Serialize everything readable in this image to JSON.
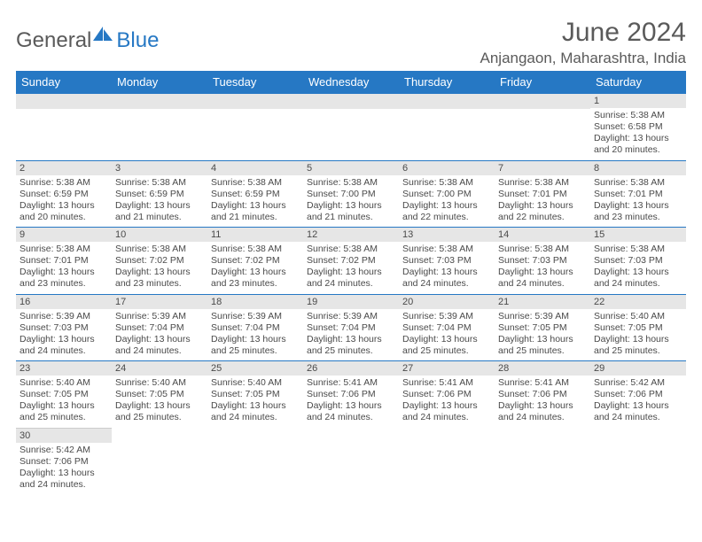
{
  "brand": {
    "part1": "General",
    "part2": "Blue",
    "color_dark": "#5a5a5a",
    "color_blue": "#2678c4"
  },
  "title": "June 2024",
  "subtitle": "Anjangaon, Maharashtra, India",
  "colors": {
    "header_bg": "#2678c4",
    "header_text": "#ffffff",
    "daynum_bg": "#e6e6e6",
    "border": "#2678c4",
    "text": "#4a4a4a"
  },
  "day_headers": [
    "Sunday",
    "Monday",
    "Tuesday",
    "Wednesday",
    "Thursday",
    "Friday",
    "Saturday"
  ],
  "weeks": [
    [
      null,
      null,
      null,
      null,
      null,
      null,
      {
        "n": "1",
        "sr": "Sunrise: 5:38 AM",
        "ss": "Sunset: 6:58 PM",
        "dl": "Daylight: 13 hours and 20 minutes."
      }
    ],
    [
      {
        "n": "2",
        "sr": "Sunrise: 5:38 AM",
        "ss": "Sunset: 6:59 PM",
        "dl": "Daylight: 13 hours and 20 minutes."
      },
      {
        "n": "3",
        "sr": "Sunrise: 5:38 AM",
        "ss": "Sunset: 6:59 PM",
        "dl": "Daylight: 13 hours and 21 minutes."
      },
      {
        "n": "4",
        "sr": "Sunrise: 5:38 AM",
        "ss": "Sunset: 6:59 PM",
        "dl": "Daylight: 13 hours and 21 minutes."
      },
      {
        "n": "5",
        "sr": "Sunrise: 5:38 AM",
        "ss": "Sunset: 7:00 PM",
        "dl": "Daylight: 13 hours and 21 minutes."
      },
      {
        "n": "6",
        "sr": "Sunrise: 5:38 AM",
        "ss": "Sunset: 7:00 PM",
        "dl": "Daylight: 13 hours and 22 minutes."
      },
      {
        "n": "7",
        "sr": "Sunrise: 5:38 AM",
        "ss": "Sunset: 7:01 PM",
        "dl": "Daylight: 13 hours and 22 minutes."
      },
      {
        "n": "8",
        "sr": "Sunrise: 5:38 AM",
        "ss": "Sunset: 7:01 PM",
        "dl": "Daylight: 13 hours and 23 minutes."
      }
    ],
    [
      {
        "n": "9",
        "sr": "Sunrise: 5:38 AM",
        "ss": "Sunset: 7:01 PM",
        "dl": "Daylight: 13 hours and 23 minutes."
      },
      {
        "n": "10",
        "sr": "Sunrise: 5:38 AM",
        "ss": "Sunset: 7:02 PM",
        "dl": "Daylight: 13 hours and 23 minutes."
      },
      {
        "n": "11",
        "sr": "Sunrise: 5:38 AM",
        "ss": "Sunset: 7:02 PM",
        "dl": "Daylight: 13 hours and 23 minutes."
      },
      {
        "n": "12",
        "sr": "Sunrise: 5:38 AM",
        "ss": "Sunset: 7:02 PM",
        "dl": "Daylight: 13 hours and 24 minutes."
      },
      {
        "n": "13",
        "sr": "Sunrise: 5:38 AM",
        "ss": "Sunset: 7:03 PM",
        "dl": "Daylight: 13 hours and 24 minutes."
      },
      {
        "n": "14",
        "sr": "Sunrise: 5:38 AM",
        "ss": "Sunset: 7:03 PM",
        "dl": "Daylight: 13 hours and 24 minutes."
      },
      {
        "n": "15",
        "sr": "Sunrise: 5:38 AM",
        "ss": "Sunset: 7:03 PM",
        "dl": "Daylight: 13 hours and 24 minutes."
      }
    ],
    [
      {
        "n": "16",
        "sr": "Sunrise: 5:39 AM",
        "ss": "Sunset: 7:03 PM",
        "dl": "Daylight: 13 hours and 24 minutes."
      },
      {
        "n": "17",
        "sr": "Sunrise: 5:39 AM",
        "ss": "Sunset: 7:04 PM",
        "dl": "Daylight: 13 hours and 24 minutes."
      },
      {
        "n": "18",
        "sr": "Sunrise: 5:39 AM",
        "ss": "Sunset: 7:04 PM",
        "dl": "Daylight: 13 hours and 25 minutes."
      },
      {
        "n": "19",
        "sr": "Sunrise: 5:39 AM",
        "ss": "Sunset: 7:04 PM",
        "dl": "Daylight: 13 hours and 25 minutes."
      },
      {
        "n": "20",
        "sr": "Sunrise: 5:39 AM",
        "ss": "Sunset: 7:04 PM",
        "dl": "Daylight: 13 hours and 25 minutes."
      },
      {
        "n": "21",
        "sr": "Sunrise: 5:39 AM",
        "ss": "Sunset: 7:05 PM",
        "dl": "Daylight: 13 hours and 25 minutes."
      },
      {
        "n": "22",
        "sr": "Sunrise: 5:40 AM",
        "ss": "Sunset: 7:05 PM",
        "dl": "Daylight: 13 hours and 25 minutes."
      }
    ],
    [
      {
        "n": "23",
        "sr": "Sunrise: 5:40 AM",
        "ss": "Sunset: 7:05 PM",
        "dl": "Daylight: 13 hours and 25 minutes."
      },
      {
        "n": "24",
        "sr": "Sunrise: 5:40 AM",
        "ss": "Sunset: 7:05 PM",
        "dl": "Daylight: 13 hours and 25 minutes."
      },
      {
        "n": "25",
        "sr": "Sunrise: 5:40 AM",
        "ss": "Sunset: 7:05 PM",
        "dl": "Daylight: 13 hours and 24 minutes."
      },
      {
        "n": "26",
        "sr": "Sunrise: 5:41 AM",
        "ss": "Sunset: 7:06 PM",
        "dl": "Daylight: 13 hours and 24 minutes."
      },
      {
        "n": "27",
        "sr": "Sunrise: 5:41 AM",
        "ss": "Sunset: 7:06 PM",
        "dl": "Daylight: 13 hours and 24 minutes."
      },
      {
        "n": "28",
        "sr": "Sunrise: 5:41 AM",
        "ss": "Sunset: 7:06 PM",
        "dl": "Daylight: 13 hours and 24 minutes."
      },
      {
        "n": "29",
        "sr": "Sunrise: 5:42 AM",
        "ss": "Sunset: 7:06 PM",
        "dl": "Daylight: 13 hours and 24 minutes."
      }
    ],
    [
      {
        "n": "30",
        "sr": "Sunrise: 5:42 AM",
        "ss": "Sunset: 7:06 PM",
        "dl": "Daylight: 13 hours and 24 minutes."
      },
      null,
      null,
      null,
      null,
      null,
      null
    ]
  ]
}
